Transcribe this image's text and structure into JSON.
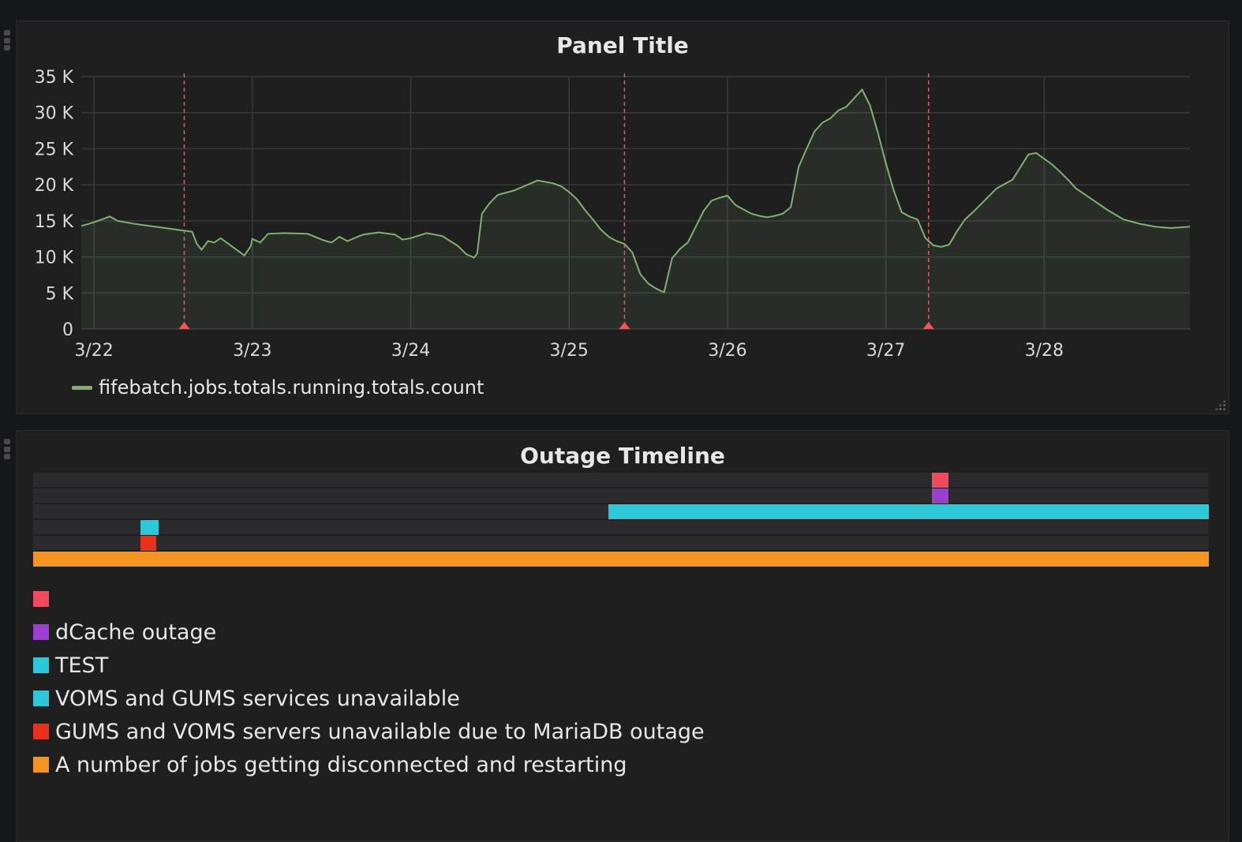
{
  "graph_panel": {
    "title": "Panel Title",
    "legend_label": "fifebatch.jobs.totals.running.totals.count",
    "colors": {
      "series": "#7eb26d",
      "annotation": "#f0555c",
      "grid": "#3a3a3c"
    }
  },
  "chart_data": {
    "type": "area",
    "title": "Panel Title",
    "x_tick_labels": [
      "3/22",
      "3/23",
      "3/24",
      "3/25",
      "3/26",
      "3/27",
      "3/28"
    ],
    "y_tick_labels": [
      "0",
      "5 K",
      "10 K",
      "15 K",
      "20 K",
      "25 K",
      "30 K",
      "35 K"
    ],
    "ylim": [
      0,
      35000
    ],
    "xlim_days": [
      -0.08,
      6.92
    ],
    "grid": true,
    "legend_position": "bottom-left",
    "series": [
      {
        "name": "fifebatch.jobs.totals.running.totals.count",
        "color": "#7eb26d",
        "x_days_since_3_22": [
          -0.08,
          0,
          0.1,
          0.15,
          0.2,
          0.25,
          0.35,
          0.45,
          0.55,
          0.62,
          0.65,
          0.68,
          0.72,
          0.76,
          0.8,
          0.9,
          0.95,
          0.99,
          1.0,
          1.05,
          1.1,
          1.2,
          1.35,
          1.45,
          1.5,
          1.55,
          1.6,
          1.7,
          1.8,
          1.9,
          1.95,
          2.0,
          2.1,
          2.15,
          2.2,
          2.3,
          2.35,
          2.4,
          2.42,
          2.45,
          2.5,
          2.55,
          2.65,
          2.75,
          2.8,
          2.9,
          2.95,
          3.0,
          3.05,
          3.1,
          3.15,
          3.2,
          3.25,
          3.3,
          3.35,
          3.4,
          3.45,
          3.5,
          3.55,
          3.6,
          3.65,
          3.7,
          3.75,
          3.8,
          3.85,
          3.9,
          3.95,
          4.0,
          4.05,
          4.1,
          4.15,
          4.2,
          4.25,
          4.3,
          4.35,
          4.4,
          4.45,
          4.5,
          4.55,
          4.6,
          4.65,
          4.7,
          4.75,
          4.8,
          4.85,
          4.9,
          4.95,
          5.0,
          5.05,
          5.1,
          5.15,
          5.2,
          5.25,
          5.3,
          5.35,
          5.4,
          5.45,
          5.5,
          5.55,
          5.6,
          5.7,
          5.8,
          5.9,
          5.95,
          6.0,
          6.05,
          6.1,
          6.15,
          6.2,
          6.3,
          6.4,
          6.5,
          6.6,
          6.7,
          6.8,
          6.92
        ],
        "y": [
          14300,
          14800,
          15600,
          15000,
          14800,
          14600,
          14300,
          14000,
          13700,
          13500,
          11800,
          11000,
          12200,
          12000,
          12600,
          11000,
          10200,
          11500,
          12500,
          12000,
          13200,
          13300,
          13200,
          12300,
          12000,
          12800,
          12200,
          13100,
          13400,
          13100,
          12400,
          12600,
          13300,
          13100,
          12900,
          11500,
          10400,
          9900,
          10500,
          16000,
          17500,
          18600,
          19200,
          20100,
          20600,
          20200,
          19800,
          19000,
          18000,
          16500,
          15200,
          13800,
          12800,
          12200,
          11800,
          10600,
          7600,
          6300,
          5600,
          5100,
          9800,
          11100,
          12000,
          14200,
          16400,
          17800,
          18200,
          18500,
          17200,
          16600,
          16000,
          15700,
          15500,
          15700,
          16000,
          16900,
          22500,
          25000,
          27400,
          28600,
          29200,
          30300,
          30800,
          32000,
          33200,
          31000,
          27200,
          23000,
          19200,
          16200,
          15600,
          15200,
          12600,
          11600,
          11400,
          11700,
          13600,
          15200,
          16200,
          17300,
          19500,
          20700,
          24200,
          24400,
          23600,
          22800,
          21800,
          20700,
          19500,
          18000,
          16500,
          15200,
          14600,
          14200,
          14000,
          14200
        ]
      }
    ],
    "annotations_x_days": [
      0.57,
      3.35,
      5.27
    ]
  },
  "timeline_panel": {
    "title": "Outage Timeline",
    "legend": [
      {
        "label": "",
        "color": "#f2495c"
      },
      {
        "label": "dCache outage",
        "color": "#9c3fd1"
      },
      {
        "label": "TEST",
        "color": "#2dc7da"
      },
      {
        "label": "VOMS and GUMS services unavailable",
        "color": "#2dc7da"
      },
      {
        "label": "GUMS and VOMS servers unavailable due to MariaDB outage",
        "color": "#e8301b"
      },
      {
        "label": "A number of jobs getting disconnected and restarting",
        "color": "#f59420"
      }
    ]
  }
}
